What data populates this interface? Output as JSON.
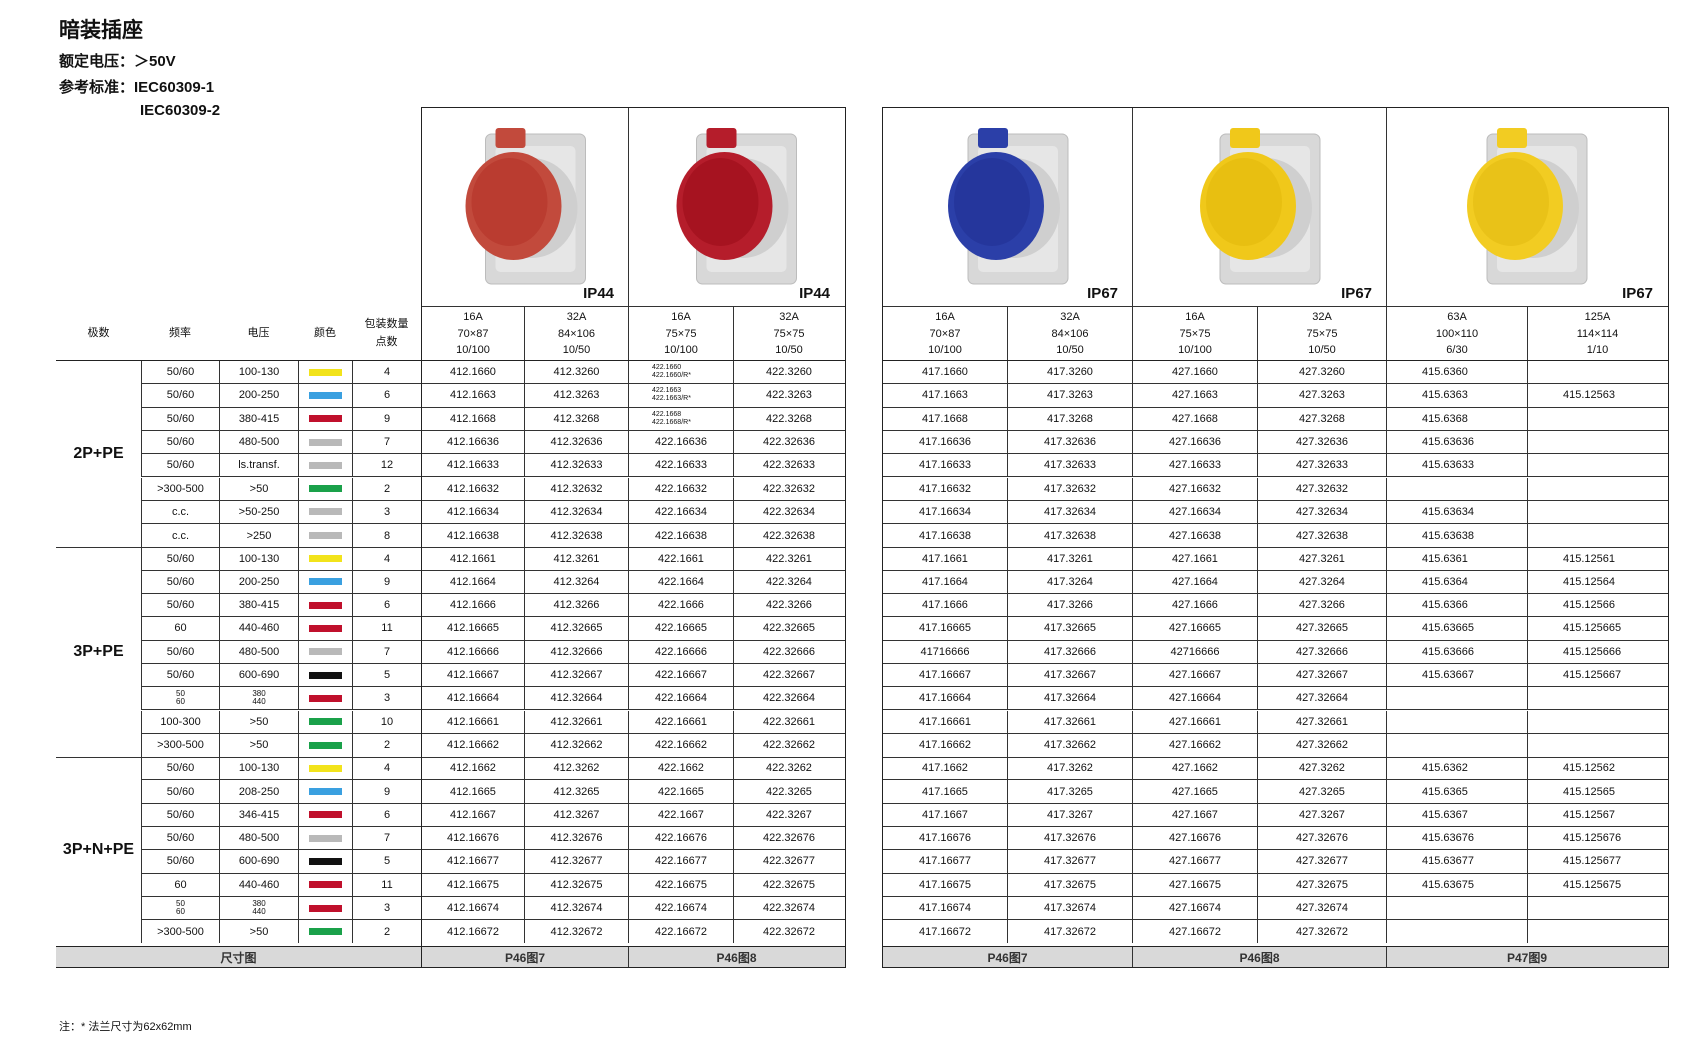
{
  "header": {
    "title": "暗装插座",
    "voltage": "额定电压：＞50V",
    "standard_1": "参考标准：IEC60309-1",
    "standard_2": "IEC60309-2"
  },
  "note": "注：* 法兰尺寸为62x62mm",
  "left_headers": {
    "poles": "极数",
    "freq": "频率",
    "voltage": "电压",
    "color": "颜色",
    "pack_1": "包装数量",
    "pack_2": "点数"
  },
  "colors": {
    "yellow": "#f2e31b",
    "blue": "#3aa0e0",
    "red": "#c0102c",
    "grey": "#b9b9b9",
    "green": "#1aa14a",
    "black": "#111111"
  },
  "groups": [
    {
      "label": "2P+PE",
      "rows": [
        {
          "freq": "50/60",
          "voltage": "100-130",
          "color": "yellow",
          "qty": "4"
        },
        {
          "freq": "50/60",
          "voltage": "200-250",
          "color": "blue",
          "qty": "6"
        },
        {
          "freq": "50/60",
          "voltage": "380-415",
          "color": "red",
          "qty": "9"
        },
        {
          "freq": "50/60",
          "voltage": "480-500",
          "color": "grey",
          "qty": "7"
        },
        {
          "freq": "50/60",
          "voltage": "ls.transf.",
          "color": "grey",
          "qty": "12"
        },
        {
          "freq": ">300-500",
          "voltage": ">50",
          "color": "green",
          "qty": "2"
        },
        {
          "freq": "c.c.",
          "voltage": ">50-250",
          "color": "grey",
          "qty": "3"
        },
        {
          "freq": "c.c.",
          "voltage": ">250",
          "color": "grey",
          "qty": "8"
        }
      ]
    },
    {
      "label": "3P+PE",
      "rows": [
        {
          "freq": "50/60",
          "voltage": "100-130",
          "color": "yellow",
          "qty": "4"
        },
        {
          "freq": "50/60",
          "voltage": "200-250",
          "color": "blue",
          "qty": "9"
        },
        {
          "freq": "50/60",
          "voltage": "380-415",
          "color": "red",
          "qty": "6"
        },
        {
          "freq": "60",
          "voltage": "440-460",
          "color": "red",
          "qty": "11"
        },
        {
          "freq": "50/60",
          "voltage": "480-500",
          "color": "grey",
          "qty": "7"
        },
        {
          "freq": "50/60",
          "voltage": "600-690",
          "color": "black",
          "qty": "5"
        },
        {
          "freq": "50\n60",
          "voltage": "380\n440",
          "color": "red",
          "qty": "3",
          "small": true
        },
        {
          "freq": "100-300",
          "voltage": ">50",
          "color": "green",
          "qty": "10"
        },
        {
          "freq": ">300-500",
          "voltage": ">50",
          "color": "green",
          "qty": "2"
        }
      ]
    },
    {
      "label": "3P+N+PE",
      "rows": [
        {
          "freq": "50/60",
          "voltage": "100-130",
          "color": "yellow",
          "qty": "4"
        },
        {
          "freq": "50/60",
          "voltage": "208-250",
          "color": "blue",
          "qty": "9"
        },
        {
          "freq": "50/60",
          "voltage": "346-415",
          "color": "red",
          "qty": "6"
        },
        {
          "freq": "50/60",
          "voltage": "480-500",
          "color": "grey",
          "qty": "7"
        },
        {
          "freq": "50/60",
          "voltage": "600-690",
          "color": "black",
          "qty": "5"
        },
        {
          "freq": "60",
          "voltage": "440-460",
          "color": "red",
          "qty": "11"
        },
        {
          "freq": "50\n60",
          "voltage": "380\n440",
          "color": "red",
          "qty": "3",
          "small": true
        },
        {
          "freq": ">300-500",
          "voltage": ">50",
          "color": "green",
          "qty": "2"
        }
      ]
    }
  ],
  "left_footer": "尺寸图",
  "table_a": {
    "images": [
      {
        "ip": "IP44",
        "body_color": "#c24a3c",
        "lid_color": "#b8392e"
      },
      {
        "ip": "IP44",
        "body_color": "#b51d2b",
        "lid_color": "#a3121f"
      }
    ],
    "columns": [
      {
        "current": "16A",
        "size": "70×87",
        "pack": "10/100"
      },
      {
        "current": "32A",
        "size": "84×106",
        "pack": "10/50"
      },
      {
        "current": "16A",
        "size": "75×75",
        "pack": "10/100"
      },
      {
        "current": "32A",
        "size": "75×75",
        "pack": "10/50"
      }
    ],
    "rows": [
      [
        "412.1660",
        "412.3260",
        "422.1660\n422.1660/R*",
        "422.3260"
      ],
      [
        "412.1663",
        "412.3263",
        "422.1663\n422.1663/R*",
        "422.3263"
      ],
      [
        "412.1668",
        "412.3268",
        "422.1668\n422.1668/R*",
        "422.3268"
      ],
      [
        "412.16636",
        "412.32636",
        "422.16636",
        "422.32636"
      ],
      [
        "412.16633",
        "412.32633",
        "422.16633",
        "422.32633"
      ],
      [
        "412.16632",
        "412.32632",
        "422.16632",
        "422.32632"
      ],
      [
        "412.16634",
        "412.32634",
        "422.16634",
        "422.32634"
      ],
      [
        "412.16638",
        "412.32638",
        "422.16638",
        "422.32638"
      ],
      [
        "412.1661",
        "412.3261",
        "422.1661",
        "422.3261"
      ],
      [
        "412.1664",
        "412.3264",
        "422.1664",
        "422.3264"
      ],
      [
        "412.1666",
        "412.3266",
        "422.1666",
        "422.3266"
      ],
      [
        "412.16665",
        "412.32665",
        "422.16665",
        "422.32665"
      ],
      [
        "412.16666",
        "412.32666",
        "422.16666",
        "422.32666"
      ],
      [
        "412.16667",
        "412.32667",
        "422.16667",
        "422.32667"
      ],
      [
        "412.16664",
        "412.32664",
        "422.16664",
        "422.32664"
      ],
      [
        "412.16661",
        "412.32661",
        "422.16661",
        "422.32661"
      ],
      [
        "412.16662",
        "412.32662",
        "422.16662",
        "422.32662"
      ],
      [
        "412.1662",
        "412.3262",
        "422.1662",
        "422.3262"
      ],
      [
        "412.1665",
        "412.3265",
        "422.1665",
        "422.3265"
      ],
      [
        "412.1667",
        "412.3267",
        "422.1667",
        "422.3267"
      ],
      [
        "412.16676",
        "412.32676",
        "422.16676",
        "422.32676"
      ],
      [
        "412.16677",
        "412.32677",
        "422.16677",
        "422.32677"
      ],
      [
        "412.16675",
        "412.32675",
        "422.16675",
        "422.32675"
      ],
      [
        "412.16674",
        "412.32674",
        "422.16674",
        "422.32674"
      ],
      [
        "412.16672",
        "412.32672",
        "422.16672",
        "422.32672"
      ]
    ],
    "footers": [
      "P46图7",
      "P46图8"
    ]
  },
  "table_b": {
    "images": [
      {
        "ip": "IP67",
        "body_color": "#2b3fa8",
        "lid_color": "#24359a"
      },
      {
        "ip": "IP67",
        "body_color": "#f0c81a",
        "lid_color": "#e6bd10"
      },
      {
        "ip": "IP67",
        "body_color": "#f2cc22",
        "lid_color": "#e8c016"
      }
    ],
    "columns": [
      {
        "current": "16A",
        "size": "70×87",
        "pack": "10/100"
      },
      {
        "current": "32A",
        "size": "84×106",
        "pack": "10/50"
      },
      {
        "current": "16A",
        "size": "75×75",
        "pack": "10/100"
      },
      {
        "current": "32A",
        "size": "75×75",
        "pack": "10/50"
      },
      {
        "current": "63A",
        "size": "100×110",
        "pack": "6/30"
      },
      {
        "current": "125A",
        "size": "114×114",
        "pack": "1/10"
      }
    ],
    "rows": [
      [
        "417.1660",
        "417.3260",
        "427.1660",
        "427.3260",
        "415.6360",
        ""
      ],
      [
        "417.1663",
        "417.3263",
        "427.1663",
        "427.3263",
        "415.6363",
        "415.12563"
      ],
      [
        "417.1668",
        "417.3268",
        "427.1668",
        "427.3268",
        "415.6368",
        ""
      ],
      [
        "417.16636",
        "417.32636",
        "427.16636",
        "427.32636",
        "415.63636",
        ""
      ],
      [
        "417.16633",
        "417.32633",
        "427.16633",
        "427.32633",
        "415.63633",
        ""
      ],
      [
        "417.16632",
        "417.32632",
        "427.16632",
        "427.32632",
        "",
        ""
      ],
      [
        "417.16634",
        "417.32634",
        "427.16634",
        "427.32634",
        "415.63634",
        ""
      ],
      [
        "417.16638",
        "417.32638",
        "427.16638",
        "427.32638",
        "415.63638",
        ""
      ],
      [
        "417.1661",
        "417.3261",
        "427.1661",
        "427.3261",
        "415.6361",
        "415.12561"
      ],
      [
        "417.1664",
        "417.3264",
        "427.1664",
        "427.3264",
        "415.6364",
        "415.12564"
      ],
      [
        "417.1666",
        "417.3266",
        "427.1666",
        "427.3266",
        "415.6366",
        "415.12566"
      ],
      [
        "417.16665",
        "417.32665",
        "427.16665",
        "427.32665",
        "415.63665",
        "415.125665"
      ],
      [
        "41716666",
        "417.32666",
        "42716666",
        "427.32666",
        "415.63666",
        "415.125666"
      ],
      [
        "417.16667",
        "417.32667",
        "427.16667",
        "427.32667",
        "415.63667",
        "415.125667"
      ],
      [
        "417.16664",
        "417.32664",
        "427.16664",
        "427.32664",
        "",
        ""
      ],
      [
        "417.16661",
        "417.32661",
        "427.16661",
        "427.32661",
        "",
        ""
      ],
      [
        "417.16662",
        "417.32662",
        "427.16662",
        "427.32662",
        "",
        ""
      ],
      [
        "417.1662",
        "417.3262",
        "427.1662",
        "427.3262",
        "415.6362",
        "415.12562"
      ],
      [
        "417.1665",
        "417.3265",
        "427.1665",
        "427.3265",
        "415.6365",
        "415.12565"
      ],
      [
        "417.1667",
        "417.3267",
        "427.1667",
        "427.3267",
        "415.6367",
        "415.12567"
      ],
      [
        "417.16676",
        "417.32676",
        "427.16676",
        "427.32676",
        "415.63676",
        "415.125676"
      ],
      [
        "417.16677",
        "417.32677",
        "427.16677",
        "427.32677",
        "415.63677",
        "415.125677"
      ],
      [
        "417.16675",
        "417.32675",
        "427.16675",
        "427.32675",
        "415.63675",
        "415.125675"
      ],
      [
        "417.16674",
        "417.32674",
        "427.16674",
        "427.32674",
        "",
        ""
      ],
      [
        "417.16672",
        "417.32672",
        "427.16672",
        "427.32672",
        "",
        ""
      ]
    ],
    "footers": [
      "P46图7",
      "P46图8",
      "P47图9"
    ]
  }
}
